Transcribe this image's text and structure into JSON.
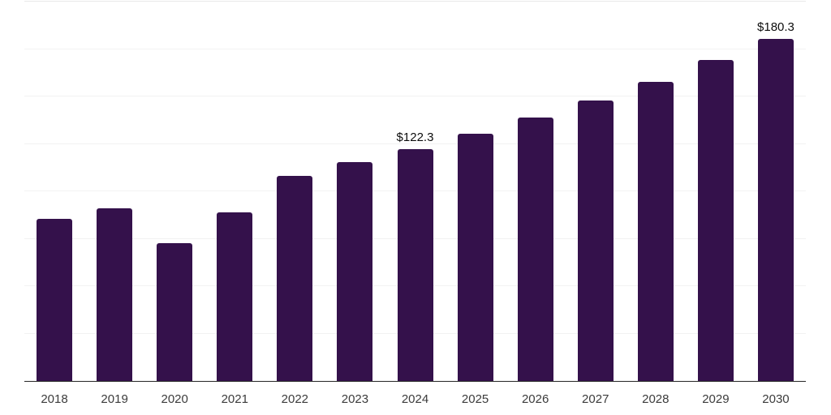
{
  "chart_data": {
    "type": "bar",
    "title": "",
    "xlabel": "",
    "ylabel": "",
    "categories": [
      "2018",
      "2019",
      "2020",
      "2021",
      "2022",
      "2023",
      "2024",
      "2025",
      "2026",
      "2027",
      "2028",
      "2029",
      "2030"
    ],
    "values": [
      85.6,
      91.2,
      72.8,
      89.0,
      108.2,
      115.2,
      122.3,
      130.4,
      139.0,
      148.0,
      157.9,
      169.2,
      180.3
    ],
    "value_labels": [
      "",
      "",
      "",
      "",
      "",
      "",
      "$122.3",
      "",
      "",
      "",
      "",
      "",
      "$180.3"
    ],
    "ylim": [
      0,
      200
    ],
    "gridline_interval": 25,
    "grid": true,
    "y_axis_labels_visible": false,
    "legend_position": "none",
    "colors": {
      "bar": "#34114b",
      "axis_line": "#262626",
      "tick_label": "#3b3b3b",
      "value_label": "#0d0d0d",
      "gridline": "#f2f2f2",
      "gridline_top": "#e9e9e9",
      "background": "#ffffff"
    }
  }
}
